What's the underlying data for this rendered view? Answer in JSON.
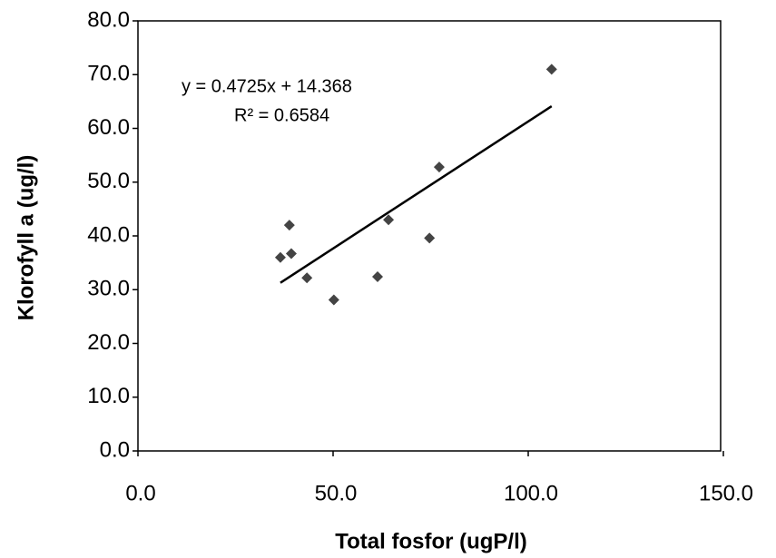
{
  "chart_data": {
    "type": "scatter",
    "x_label": "Total fosfor (ugP/l)",
    "y_label": "Klorofyll a (ug/l)",
    "x": [
      35.8,
      38.1,
      38.6,
      42.6,
      49.5,
      60.7,
      63.5,
      74.0,
      76.5,
      105.3
    ],
    "series": [
      {
        "name": "Klorofyll a",
        "color": "#444444",
        "values": [
          36.0,
          42.0,
          36.7,
          32.2,
          28.1,
          32.4,
          43.0,
          39.6,
          52.8,
          71.0
        ]
      }
    ],
    "trendline": {
      "slope": 0.4725,
      "intercept": 14.368,
      "color": "#000000"
    },
    "annotations": [
      "y = 0.4725x + 14.368",
      "R² = 0.6584"
    ],
    "xlim": [
      0,
      150
    ],
    "ylim": [
      0,
      80
    ],
    "xticks": [
      {
        "value": 0,
        "label": "0.0"
      },
      {
        "value": 50,
        "label": "50.0"
      },
      {
        "value": 100,
        "label": "100.0"
      },
      {
        "value": 150,
        "label": "150.0"
      }
    ],
    "yticks": [
      {
        "value": 0,
        "label": "0.0"
      },
      {
        "value": 10,
        "label": "10.0"
      },
      {
        "value": 20,
        "label": "20.0"
      },
      {
        "value": 30,
        "label": "30.0"
      },
      {
        "value": 40,
        "label": "40.0"
      },
      {
        "value": 50,
        "label": "50.0"
      },
      {
        "value": 60,
        "label": "60.0"
      },
      {
        "value": 70,
        "label": "70.0"
      },
      {
        "value": 80,
        "label": "80.0"
      }
    ],
    "grid": false
  }
}
